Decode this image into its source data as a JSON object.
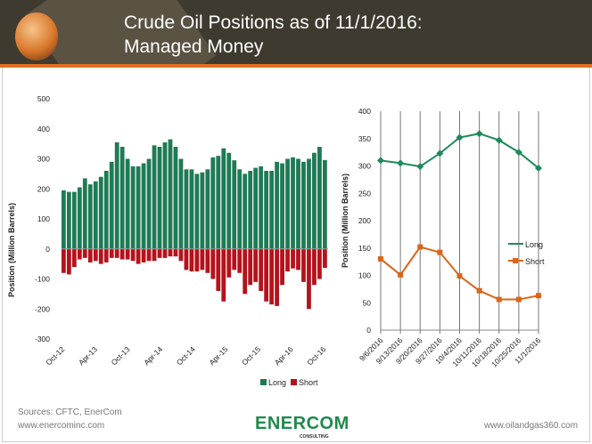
{
  "header": {
    "title_line1": "Crude Oil Positions as of 11/1/2016:",
    "title_line2": "Managed Money"
  },
  "footer": {
    "sources": "Sources: CFTC, EnerCom",
    "left_url": "www.enercominc.com",
    "right_url": "www.oilandgas360.com",
    "logo_text": "ENERCOM",
    "logo_sub": "CONSULTING"
  },
  "colors": {
    "long_bar": "#1e7b55",
    "short_bar": "#b5121b",
    "long_line": "#1e8a5a",
    "short_line": "#d9661a",
    "header": "#3f3a2f",
    "accent": "#e07020"
  },
  "chart_data": [
    {
      "type": "bar",
      "ylabel": "Position (Million Barrels)",
      "ylim": [
        -300,
        500
      ],
      "yticks": [
        "500",
        "400",
        "300",
        "200",
        "100",
        "0",
        "-100",
        "-200",
        "-300"
      ],
      "xticks": [
        "Oct-12",
        "Apr-13",
        "Oct-13",
        "Apr-14",
        "Oct-14",
        "Apr-15",
        "Oct-15",
        "Apr-16",
        "Oct-16"
      ],
      "legend": [
        "Long",
        "Short"
      ],
      "legend_position": "bottom-right",
      "series": [
        {
          "name": "Long",
          "values": [
            195,
            190,
            190,
            205,
            235,
            215,
            225,
            240,
            260,
            290,
            355,
            340,
            300,
            275,
            275,
            285,
            300,
            345,
            340,
            355,
            365,
            340,
            300,
            265,
            265,
            250,
            255,
            265,
            305,
            310,
            335,
            320,
            295,
            265,
            250,
            260,
            270,
            275,
            260,
            260,
            290,
            285,
            300,
            305,
            300,
            290,
            300,
            320,
            340,
            296
          ]
        },
        {
          "name": "Short",
          "values": [
            -80,
            -85,
            -60,
            -35,
            -30,
            -45,
            -40,
            -50,
            -45,
            -30,
            -30,
            -35,
            -35,
            -40,
            -50,
            -45,
            -40,
            -40,
            -30,
            -30,
            -25,
            -25,
            -40,
            -70,
            -75,
            -75,
            -70,
            -80,
            -100,
            -140,
            -175,
            -95,
            -70,
            -80,
            -150,
            -120,
            -110,
            -140,
            -175,
            -185,
            -190,
            -120,
            -75,
            -65,
            -70,
            -110,
            -200,
            -120,
            -100,
            -63
          ]
        }
      ]
    },
    {
      "type": "line",
      "ylabel": "Position (Million Barrels)",
      "ylim": [
        0,
        400
      ],
      "yticks": [
        "400",
        "350",
        "300",
        "250",
        "200",
        "150",
        "100",
        "50",
        "0"
      ],
      "categories": [
        "9/6/2016",
        "9/13/2016",
        "9/20/2016",
        "9/27/2016",
        "10/4/2016",
        "10/11/2016",
        "10/18/2016",
        "10/25/2016",
        "11/1/2016"
      ],
      "legend_position": "right",
      "series": [
        {
          "name": "Long",
          "values": [
            310,
            305,
            299,
            323,
            352,
            359,
            347,
            325,
            296
          ]
        },
        {
          "name": "Short",
          "values": [
            130,
            101,
            152,
            142,
            99,
            72,
            56,
            56,
            63
          ]
        }
      ]
    }
  ]
}
